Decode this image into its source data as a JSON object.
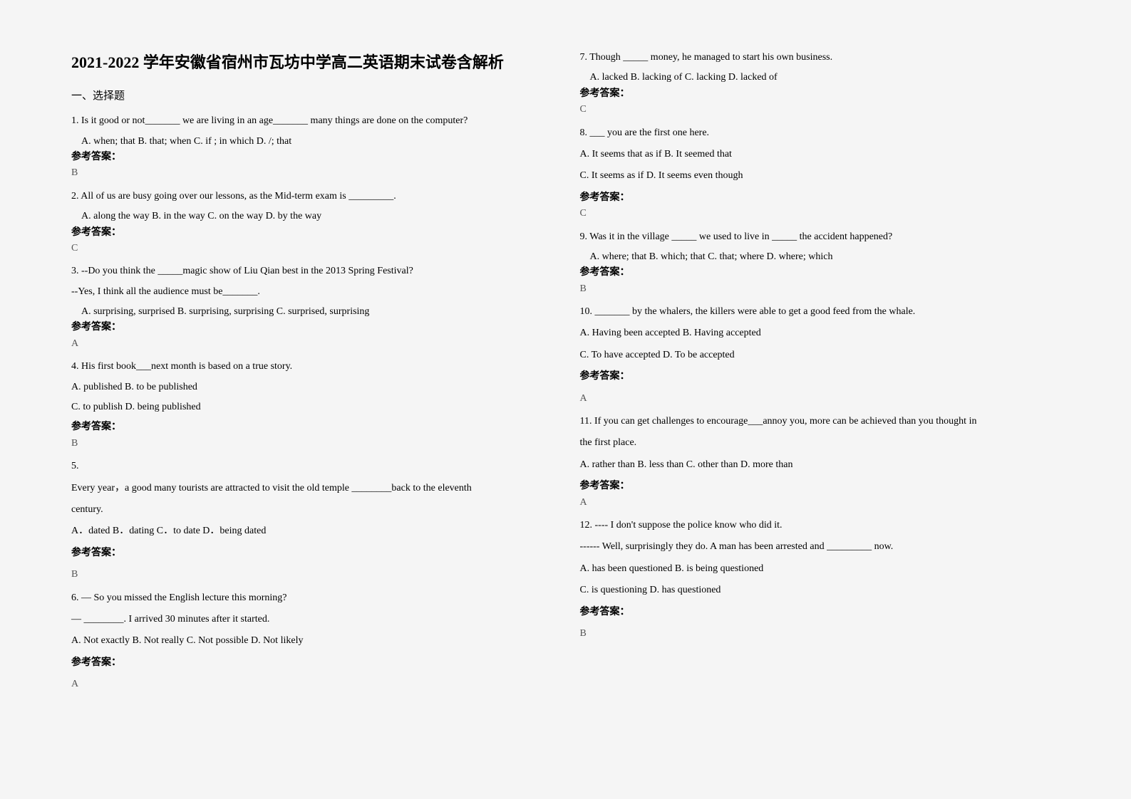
{
  "title": "2021-2022 学年安徽省宿州市瓦坊中学高二英语期末试卷含解析",
  "section": "一、选择题",
  "answer_label": "参考答案：",
  "left": {
    "q1": "1. Is it good or not_______ we are living in an age_______ many things are done on the computer?",
    "q1opts": "A. when; that    B. that; when                      C. if ; in which                           D. /; that",
    "a1": "B",
    "q2": "2. All of us are busy going over our lessons, as the Mid-term exam is _________.",
    "q2opts": " A. along the way       B. in the way                          C. on the way                               D. by the way",
    "a2": "C",
    "q3": "3. --Do you think the _____magic show of Liu Qian best in the 2013 Spring Festival?",
    "q3b": "   --Yes, I think all the audience must be_______.",
    "q3opts": "A. surprising, surprised    B. surprising, surprising    C. surprised, surprising",
    "a3": "A",
    "q4": "4. His first book___next month is based on a true story.",
    "q4a": "A. published                        B. to be published",
    "q4b": "C. to publish                        D. being published",
    "a4": "B",
    "q5": "5.",
    "q5a": "Every year，a good many tourists are attracted to visit the old temple ________back to the eleventh",
    "q5b": "century.",
    "q5opts": "A．dated        B．dating  C．to date            D．being dated",
    "a5": "B",
    "q6": "6. — So you missed the English lecture this morning?",
    "q6a": "— ________. I arrived 30 minutes after it started.",
    "q6opts": "A. Not exactly            B. Not really                C. Not possible   D. Not likely",
    "a6": "A"
  },
  "right": {
    "q7": "7. Though _____ money, he managed to start his own business.",
    "q7opts": "A. lacked      B. lacking of    C. lacking                      D. lacked of",
    "a7": "C",
    "q8": "8. ___ you are the first one here.",
    "q8a": "A. It seems that as if       B. It seemed that",
    "q8b": "C. It seems as if        D. It seems even though",
    "a8": "C",
    "q9": "9. Was it in the village _____ we used to live in _____ the accident happened?",
    "q9opts": "A. where; that            B. which; that            C. that; where                    D. where; which",
    "a9": "B",
    "q10": "10. _______ by the whalers, the killers were able to get a good feed from the whale.",
    "q10a": "A. Having been accepted    B. Having accepted",
    "q10b": "C. To have accepted      D. To be accepted",
    "a10": "A",
    "q11": "11. If you can get challenges to encourage___annoy you, more can be achieved than you thought in",
    "q11b": "the first place.",
    "q11opts": "A. rather than         B. less than               C. other than                D. more than",
    "a11": "A",
    "q12": "12. ---- I don't suppose the police know who did it.",
    "q12a": "------ Well, surprisingly they do. A man has been arrested and _________ now.",
    "q12b": "A. has been questioned        B. is being questioned",
    "q12c": "C. is questioning            D. has questioned",
    "a12": "B"
  }
}
